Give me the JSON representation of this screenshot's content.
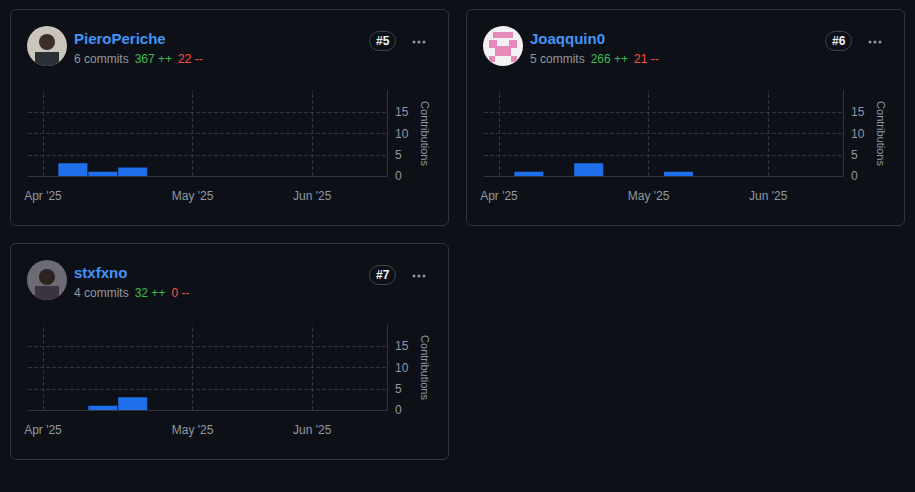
{
  "cards": [
    {
      "user": "PieroPeriche",
      "rank": "#5",
      "commits": "6 commits",
      "additions": "367 ++",
      "deletions": "22 --"
    },
    {
      "user": "Joaqquin0",
      "rank": "#6",
      "commits": "5 commits",
      "additions": "266 ++",
      "deletions": "21 --"
    },
    {
      "user": "stxfxno",
      "rank": "#7",
      "commits": "4 commits",
      "additions": "32 ++",
      "deletions": "0 --"
    }
  ],
  "chart_data": [
    {
      "type": "bar",
      "categories": [
        "Apr '25",
        null,
        null,
        null,
        null,
        "May '25",
        null,
        null,
        null,
        "Jun '25",
        null,
        null
      ],
      "values": [
        0,
        3,
        1,
        2,
        0,
        0,
        0,
        0,
        0,
        0,
        0,
        0
      ],
      "color": "#1f6feb",
      "ylabel": "Contributions",
      "ylim": [
        0,
        20
      ],
      "yticks": [
        0,
        5,
        10,
        15
      ],
      "grid": true
    },
    {
      "type": "bar",
      "categories": [
        "Apr '25",
        null,
        null,
        null,
        null,
        "May '25",
        null,
        null,
        null,
        "Jun '25",
        null,
        null
      ],
      "values": [
        0,
        1,
        0,
        3,
        0,
        0,
        1,
        0,
        0,
        0,
        0,
        0
      ],
      "color": "#1f6feb",
      "ylabel": "Contributions",
      "ylim": [
        0,
        20
      ],
      "yticks": [
        0,
        5,
        10,
        15
      ],
      "grid": true
    },
    {
      "type": "bar",
      "categories": [
        "Apr '25",
        null,
        null,
        null,
        null,
        "May '25",
        null,
        null,
        null,
        "Jun '25",
        null,
        null
      ],
      "values": [
        0,
        0,
        1,
        3,
        0,
        0,
        0,
        0,
        0,
        0,
        0,
        0
      ],
      "color": "#1f6feb",
      "ylabel": "Contributions",
      "ylim": [
        0,
        20
      ],
      "yticks": [
        0,
        5,
        10,
        15
      ],
      "grid": true
    }
  ]
}
